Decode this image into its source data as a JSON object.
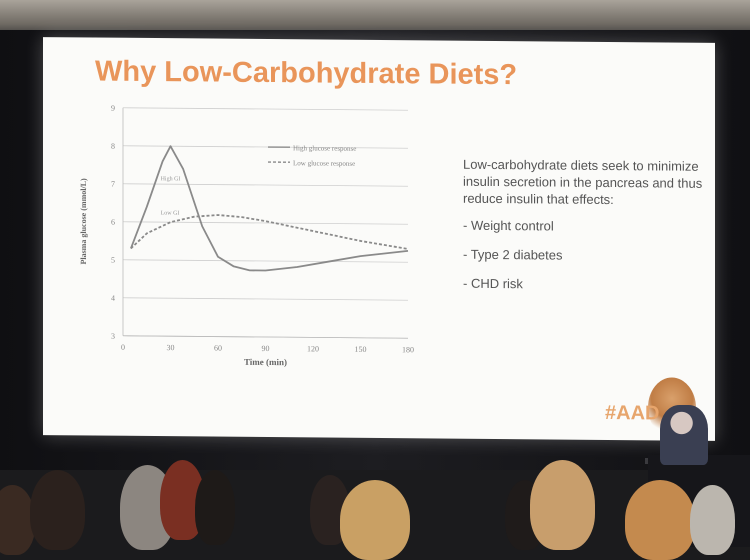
{
  "slide": {
    "title": "Why Low-Carbohydrate Diets?",
    "intro": "Low-carbohydrate diets seek to minimize insulin secretion in the pancreas and thus reduce insulin that effects:",
    "bullets": [
      "- Weight control",
      "- Type 2 diabetes",
      "- CHD risk"
    ],
    "hashtag": "#AAD"
  },
  "chart_data": {
    "type": "line",
    "title": "",
    "xlabel": "Time (min)",
    "ylabel": "Plasma glucose (mmol/L)",
    "xlim": [
      0,
      180
    ],
    "ylim": [
      3,
      9
    ],
    "xticks": [
      0,
      30,
      60,
      90,
      120,
      150,
      180
    ],
    "yticks": [
      3,
      4,
      5,
      6,
      7,
      8,
      9
    ],
    "grid": true,
    "legend_position": "top-right",
    "series": [
      {
        "name": "High glucose response",
        "style": "solid",
        "x": [
          5,
          15,
          25,
          30,
          38,
          50,
          60,
          70,
          80,
          90,
          110,
          130,
          150,
          180
        ],
        "y": [
          5.3,
          6.4,
          7.6,
          8.0,
          7.4,
          5.9,
          5.1,
          4.85,
          4.75,
          4.75,
          4.85,
          5.0,
          5.15,
          5.3
        ]
      },
      {
        "name": "Low glucose response",
        "style": "dashed",
        "x": [
          5,
          15,
          30,
          45,
          60,
          75,
          90,
          120,
          150,
          180
        ],
        "y": [
          5.3,
          5.7,
          6.0,
          6.15,
          6.2,
          6.15,
          6.05,
          5.8,
          5.55,
          5.35
        ]
      }
    ],
    "annotations": [
      {
        "text": "High GI",
        "x": 25,
        "y": 7.1
      },
      {
        "text": "Low GI",
        "x": 25,
        "y": 6.2
      }
    ]
  },
  "colors": {
    "title": "#e9955a",
    "text": "#555555",
    "line": "#8a8a8a",
    "hashtag": "#e7a56c"
  }
}
